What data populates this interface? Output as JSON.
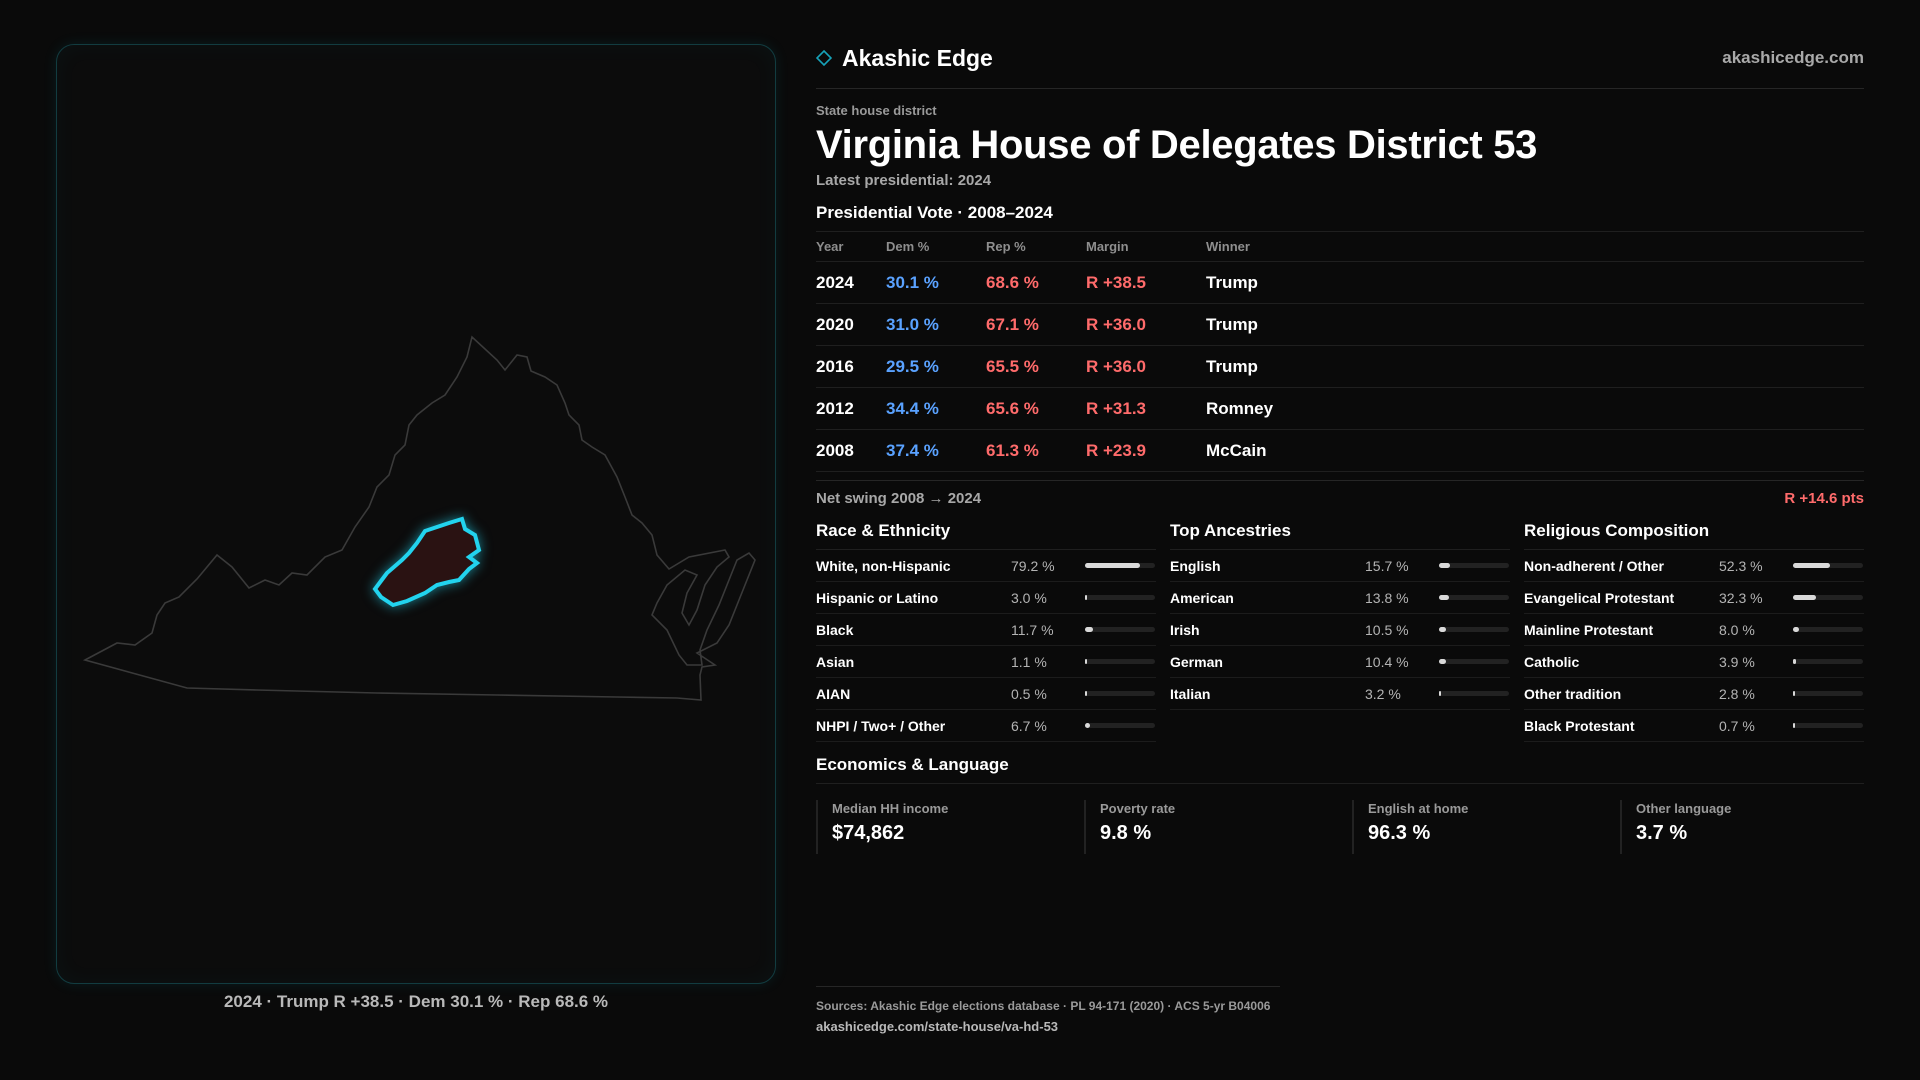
{
  "map": {
    "caption": "2024 · Trump R +38.5 · Dem 30.1 % · Rep 68.6 %",
    "outline_color": "#3a3a3a",
    "district_stroke": "#22d3ee",
    "district_fill": "#2a1212"
  },
  "brand": {
    "name": "Akashic Edge",
    "url": "akashicedge.com",
    "icon": "diamond-icon"
  },
  "header": {
    "kicker": "State house district",
    "title": "Virginia House of Delegates District 53",
    "latest": "Latest presidential: 2024"
  },
  "presidential": {
    "heading": "Presidential Vote · 2008–2024",
    "columns": [
      "Year",
      "Dem %",
      "Rep %",
      "Margin",
      "Winner"
    ],
    "rows": [
      {
        "year": "2024",
        "dem": "30.1 %",
        "rep": "68.6 %",
        "margin": "R +38.5",
        "winner": "Trump"
      },
      {
        "year": "2020",
        "dem": "31.0 %",
        "rep": "67.1 %",
        "margin": "R +36.0",
        "winner": "Trump"
      },
      {
        "year": "2016",
        "dem": "29.5 %",
        "rep": "65.5 %",
        "margin": "R +36.0",
        "winner": "Trump"
      },
      {
        "year": "2012",
        "dem": "34.4 %",
        "rep": "65.6 %",
        "margin": "R +31.3",
        "winner": "Romney"
      },
      {
        "year": "2008",
        "dem": "37.4 %",
        "rep": "61.3 %",
        "margin": "R +23.9",
        "winner": "McCain"
      }
    ],
    "swing_label": "Net swing 2008 → 2024",
    "swing_value": "R +14.6 pts"
  },
  "race": {
    "heading": "Race & Ethnicity",
    "items": [
      {
        "name": "White, non-Hispanic",
        "pct": "79.2 %",
        "value": 79.2
      },
      {
        "name": "Hispanic or Latino",
        "pct": "3.0 %",
        "value": 3.0
      },
      {
        "name": "Black",
        "pct": "11.7 %",
        "value": 11.7
      },
      {
        "name": "Asian",
        "pct": "1.1 %",
        "value": 1.1
      },
      {
        "name": "AIAN",
        "pct": "0.5 %",
        "value": 0.5
      },
      {
        "name": "NHPI / Two+ / Other",
        "pct": "6.7 %",
        "value": 6.7
      }
    ]
  },
  "ancestry": {
    "heading": "Top Ancestries",
    "items": [
      {
        "name": "English",
        "pct": "15.7 %",
        "value": 15.7
      },
      {
        "name": "American",
        "pct": "13.8 %",
        "value": 13.8
      },
      {
        "name": "Irish",
        "pct": "10.5 %",
        "value": 10.5
      },
      {
        "name": "German",
        "pct": "10.4 %",
        "value": 10.4
      },
      {
        "name": "Italian",
        "pct": "3.2 %",
        "value": 3.2
      }
    ]
  },
  "religion": {
    "heading": "Religious Composition",
    "items": [
      {
        "name": "Non-adherent / Other",
        "pct": "52.3 %",
        "value": 52.3
      },
      {
        "name": "Evangelical Protestant",
        "pct": "32.3 %",
        "value": 32.3
      },
      {
        "name": "Mainline Protestant",
        "pct": "8.0 %",
        "value": 8.0
      },
      {
        "name": "Catholic",
        "pct": "3.9 %",
        "value": 3.9
      },
      {
        "name": "Other tradition",
        "pct": "2.8 %",
        "value": 2.8
      },
      {
        "name": "Black Protestant",
        "pct": "0.7 %",
        "value": 0.7
      }
    ]
  },
  "economics": {
    "heading": "Economics & Language",
    "cards": [
      {
        "label": "Median HH income",
        "value": "$74,862"
      },
      {
        "label": "Poverty rate",
        "value": "9.8 %"
      },
      {
        "label": "English at home",
        "value": "96.3 %"
      },
      {
        "label": "Other language",
        "value": "3.7 %"
      }
    ]
  },
  "footer": {
    "sources": "Sources: Akashic Edge elections database · PL 94-171 (2020) · ACS 5-yr B04006",
    "url": "akashicedge.com/state-house/va-hd-53"
  }
}
